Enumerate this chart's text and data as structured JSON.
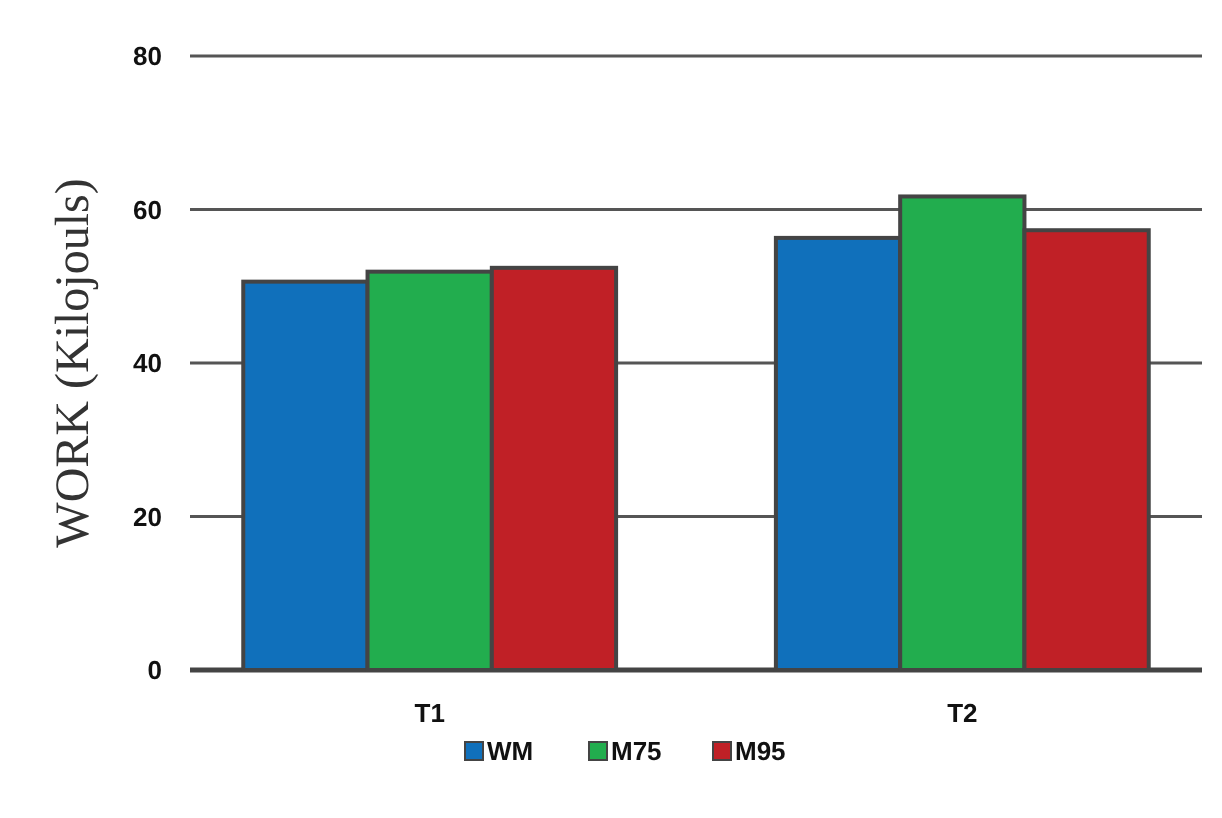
{
  "chart_data": {
    "type": "bar",
    "ylabel": "WORK (Kilojouls)",
    "categories": [
      "T1",
      "T2"
    ],
    "series": [
      {
        "name": "WM",
        "color": "#1070bb",
        "values": [
          50.6,
          56.3
        ]
      },
      {
        "name": "M75",
        "color": "#22ad4e",
        "values": [
          51.9,
          61.7
        ]
      },
      {
        "name": "M95",
        "color": "#c02026",
        "values": [
          52.4,
          57.3
        ]
      }
    ],
    "ylim": [
      0,
      80
    ],
    "yticks": [
      0,
      20,
      40,
      60,
      80
    ],
    "grid": "y",
    "legend": "bottom"
  }
}
